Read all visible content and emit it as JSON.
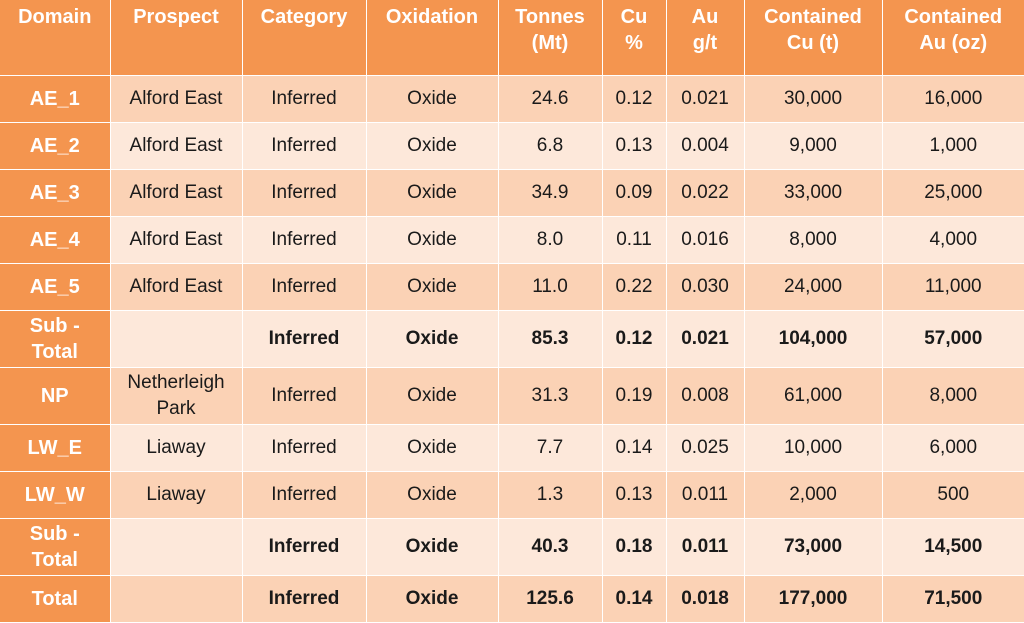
{
  "columns": [
    {
      "line1": "Domain",
      "line2": ""
    },
    {
      "line1": "Prospect",
      "line2": ""
    },
    {
      "line1": "Category",
      "line2": ""
    },
    {
      "line1": "Oxidation",
      "line2": ""
    },
    {
      "line1": "Tonnes",
      "line2": "(Mt)"
    },
    {
      "line1": "Cu",
      "line2": "%"
    },
    {
      "line1": "Au",
      "line2": "g/t"
    },
    {
      "line1": "Contained",
      "line2": "Cu (t)"
    },
    {
      "line1": "Contained",
      "line2": "Au (oz)"
    }
  ],
  "rows": [
    {
      "domain": [
        "AE_1",
        ""
      ],
      "prospect": [
        "Alford East",
        ""
      ],
      "category": "Inferred",
      "oxidation": "Oxide",
      "tonnes": "24.6",
      "cu": "0.12",
      "au": "0.021",
      "contained_cu": "30,000",
      "contained_au": "16,000"
    },
    {
      "domain": [
        "AE_2",
        ""
      ],
      "prospect": [
        "Alford East",
        ""
      ],
      "category": "Inferred",
      "oxidation": "Oxide",
      "tonnes": "6.8",
      "cu": "0.13",
      "au": "0.004",
      "contained_cu": "9,000",
      "contained_au": "1,000"
    },
    {
      "domain": [
        "AE_3",
        ""
      ],
      "prospect": [
        "Alford East",
        ""
      ],
      "category": "Inferred",
      "oxidation": "Oxide",
      "tonnes": "34.9",
      "cu": "0.09",
      "au": "0.022",
      "contained_cu": "33,000",
      "contained_au": "25,000"
    },
    {
      "domain": [
        "AE_4",
        ""
      ],
      "prospect": [
        "Alford East",
        ""
      ],
      "category": "Inferred",
      "oxidation": "Oxide",
      "tonnes": "8.0",
      "cu": "0.11",
      "au": "0.016",
      "contained_cu": "8,000",
      "contained_au": "4,000"
    },
    {
      "domain": [
        "AE_5",
        ""
      ],
      "prospect": [
        "Alford East",
        ""
      ],
      "category": "Inferred",
      "oxidation": "Oxide",
      "tonnes": "11.0",
      "cu": "0.22",
      "au": "0.030",
      "contained_cu": "24,000",
      "contained_au": "11,000"
    },
    {
      "domain": [
        "Sub -",
        "Total"
      ],
      "prospect": [
        "",
        ""
      ],
      "category": "Inferred",
      "oxidation": "Oxide",
      "tonnes": "85.3",
      "cu": "0.12",
      "au": "0.021",
      "contained_cu": "104,000",
      "contained_au": "57,000"
    },
    {
      "domain": [
        "NP",
        ""
      ],
      "prospect": [
        "Netherleigh",
        "Park"
      ],
      "category": "Inferred",
      "oxidation": "Oxide",
      "tonnes": "31.3",
      "cu": "0.19",
      "au": "0.008",
      "contained_cu": "61,000",
      "contained_au": "8,000"
    },
    {
      "domain": [
        "LW_E",
        ""
      ],
      "prospect": [
        "Liaway",
        ""
      ],
      "category": "Inferred",
      "oxidation": "Oxide",
      "tonnes": "7.7",
      "cu": "0.14",
      "au": "0.025",
      "contained_cu": "10,000",
      "contained_au": "6,000"
    },
    {
      "domain": [
        "LW_W",
        ""
      ],
      "prospect": [
        "Liaway",
        ""
      ],
      "category": "Inferred",
      "oxidation": "Oxide",
      "tonnes": "1.3",
      "cu": "0.13",
      "au": "0.011",
      "contained_cu": "2,000",
      "contained_au": "500"
    },
    {
      "domain": [
        "Sub -",
        "Total"
      ],
      "prospect": [
        "",
        ""
      ],
      "category": "Inferred",
      "oxidation": "Oxide",
      "tonnes": "40.3",
      "cu": "0.18",
      "au": "0.011",
      "contained_cu": "73,000",
      "contained_au": "14,500"
    },
    {
      "domain": [
        "Total",
        ""
      ],
      "prospect": [
        "",
        ""
      ],
      "category": "Inferred",
      "oxidation": "Oxide",
      "tonnes": "125.6",
      "cu": "0.14",
      "au": "0.018",
      "contained_cu": "177,000",
      "contained_au": "71,500"
    }
  ],
  "colors": {
    "header": "#f4954f",
    "row_dark": "#fbd2b5",
    "row_light": "#fde8da",
    "header_text": "#ffffff"
  }
}
